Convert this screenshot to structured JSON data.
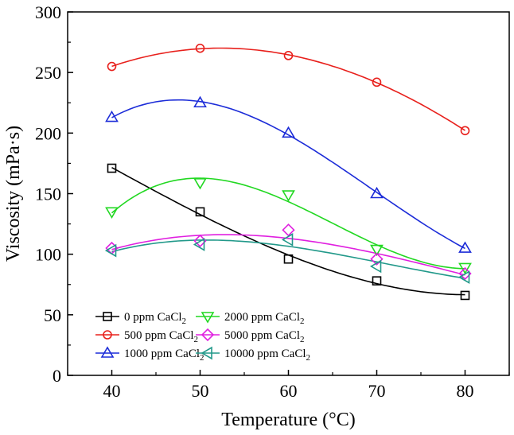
{
  "chart_data": {
    "type": "scatter",
    "title": "",
    "xlabel": "Temperature (°C)",
    "ylabel": "Viscosity (mPa·s)",
    "xlim": [
      35,
      85
    ],
    "ylim": [
      0,
      300
    ],
    "xticks": [
      40,
      50,
      60,
      70,
      80
    ],
    "yticks": [
      0,
      50,
      100,
      150,
      200,
      250,
      300
    ],
    "x": [
      40,
      50,
      60,
      70,
      80
    ],
    "legend_position": "lower-left",
    "series": [
      {
        "name": "0 ppm CaCl",
        "sub": "2",
        "marker": "square",
        "color": "#000000",
        "values": [
          171,
          135,
          96,
          78,
          66
        ]
      },
      {
        "name": "500 ppm CaCl",
        "sub": "2",
        "marker": "circle",
        "color": "#e8201c",
        "values": [
          255,
          270,
          264,
          242,
          202
        ]
      },
      {
        "name": "1000 ppm CaCl",
        "sub": "2",
        "marker": "triangle-up",
        "color": "#1c2cd8",
        "values": [
          213,
          225,
          200,
          150,
          105
        ]
      },
      {
        "name": "2000 ppm CaCl",
        "sub": "2",
        "marker": "triangle-down",
        "color": "#22d822",
        "values": [
          135,
          159,
          149,
          104,
          89
        ]
      },
      {
        "name": "5000 ppm CaCl",
        "sub": "2",
        "marker": "diamond",
        "color": "#e020e0",
        "values": [
          105,
          111,
          120,
          96,
          84
        ]
      },
      {
        "name": "10000 ppm CaCl",
        "sub": "2",
        "marker": "triangle-left",
        "color": "#22998a",
        "values": [
          103,
          108,
          112,
          90,
          81
        ]
      }
    ]
  }
}
